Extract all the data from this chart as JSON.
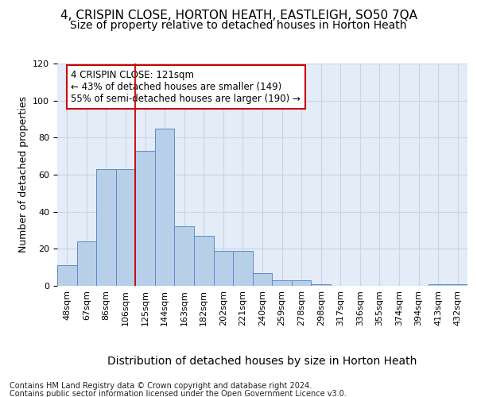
{
  "title": "4, CRISPIN CLOSE, HORTON HEATH, EASTLEIGH, SO50 7QA",
  "subtitle": "Size of property relative to detached houses in Horton Heath",
  "xlabel": "Distribution of detached houses by size in Horton Heath",
  "ylabel": "Number of detached properties",
  "categories": [
    "48sqm",
    "67sqm",
    "86sqm",
    "106sqm",
    "125sqm",
    "144sqm",
    "163sqm",
    "182sqm",
    "202sqm",
    "221sqm",
    "240sqm",
    "259sqm",
    "278sqm",
    "298sqm",
    "317sqm",
    "336sqm",
    "355sqm",
    "374sqm",
    "394sqm",
    "413sqm",
    "432sqm"
  ],
  "values": [
    11,
    24,
    63,
    63,
    73,
    85,
    32,
    27,
    19,
    19,
    7,
    3,
    3,
    1,
    0,
    0,
    0,
    0,
    0,
    1,
    1
  ],
  "bar_color": "#b8cfe8",
  "bar_edge_color": "#5b8cc8",
  "red_line_x": 4.0,
  "annotation_text": "4 CRISPIN CLOSE: 121sqm\n← 43% of detached houses are smaller (149)\n55% of semi-detached houses are larger (190) →",
  "annotation_box_facecolor": "#ffffff",
  "annotation_box_edgecolor": "#cc0000",
  "grid_color": "#c8d4e8",
  "background_color": "#e4ecf7",
  "ylim": [
    0,
    120
  ],
  "yticks": [
    0,
    20,
    40,
    60,
    80,
    100,
    120
  ],
  "footer1": "Contains HM Land Registry data © Crown copyright and database right 2024.",
  "footer2": "Contains public sector information licensed under the Open Government Licence v3.0.",
  "title_fontsize": 11,
  "subtitle_fontsize": 10,
  "tick_fontsize": 8,
  "ylabel_fontsize": 9,
  "xlabel_fontsize": 10,
  "annotation_fontsize": 8.5,
  "footer_fontsize": 7
}
